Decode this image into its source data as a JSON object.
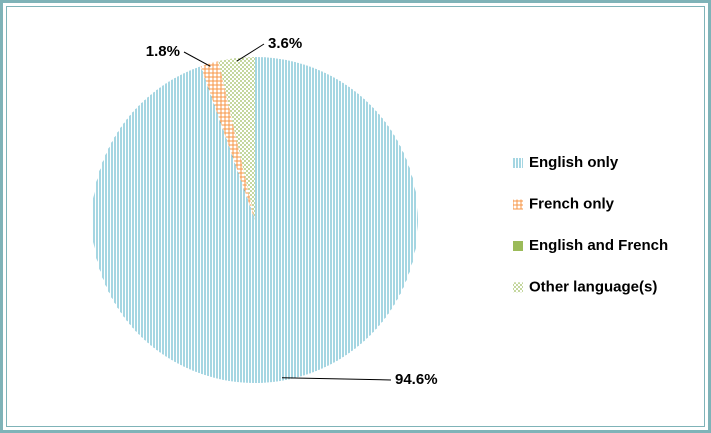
{
  "chart_data": {
    "type": "pie",
    "categories": [
      "English only",
      "French only",
      "English and French",
      "Other language(s)"
    ],
    "values": [
      94.6,
      1.8,
      0,
      3.6
    ],
    "value_labels": [
      "94.6%",
      "1.8%",
      null,
      "3.6%"
    ],
    "colors": [
      "#4bacc6",
      "#f79646",
      "#9bbb59",
      "#9bbb59"
    ],
    "patterns": [
      "vertical",
      "grid",
      "solid",
      "dots"
    ],
    "legend": "right"
  }
}
